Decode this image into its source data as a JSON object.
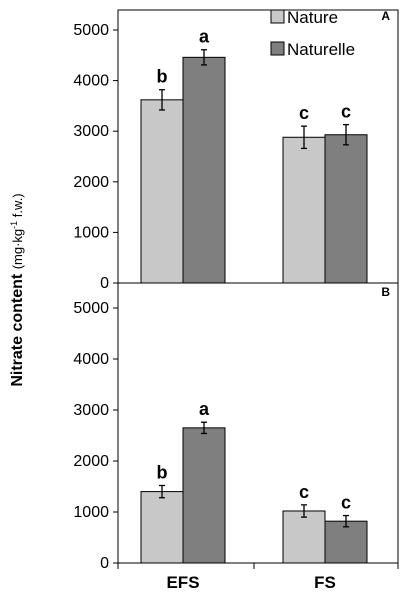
{
  "figure": {
    "ylabel_main": "Nitrate content",
    "ylabel_unit": "(mg·kg",
    "ylabel_unit_sup": "-1",
    "ylabel_unit_tail": " f.w.)"
  },
  "legend": [
    {
      "name": "Nature",
      "color": "#c8c8c8"
    },
    {
      "name": "Naturelle",
      "color": "#7f7f7f"
    }
  ],
  "chart_data": [
    {
      "type": "bar",
      "panel_label": "A",
      "categories": [
        "EFS",
        "FS"
      ],
      "ylim": [
        0,
        5000
      ],
      "yticks": [
        "0",
        "1000",
        "2000",
        "3000",
        "4000",
        "5000"
      ],
      "series": [
        {
          "name": "Nature",
          "values": [
            3620,
            2880
          ],
          "errors": [
            200,
            220
          ],
          "letters": [
            "b",
            "c"
          ]
        },
        {
          "name": "Naturelle",
          "values": [
            4460,
            2930
          ],
          "errors": [
            150,
            200
          ],
          "letters": [
            "a",
            "c"
          ]
        }
      ]
    },
    {
      "type": "bar",
      "panel_label": "B",
      "categories": [
        "EFS",
        "FS"
      ],
      "ylim": [
        0,
        5000
      ],
      "yticks": [
        "0",
        "1000",
        "2000",
        "3000",
        "4000",
        "5000"
      ],
      "series": [
        {
          "name": "Nature",
          "values": [
            1400,
            1020
          ],
          "errors": [
            120,
            120
          ],
          "letters": [
            "b",
            "c"
          ]
        },
        {
          "name": "Naturelle",
          "values": [
            2650,
            820
          ],
          "errors": [
            110,
            110
          ],
          "letters": [
            "a",
            "c"
          ]
        }
      ]
    }
  ]
}
